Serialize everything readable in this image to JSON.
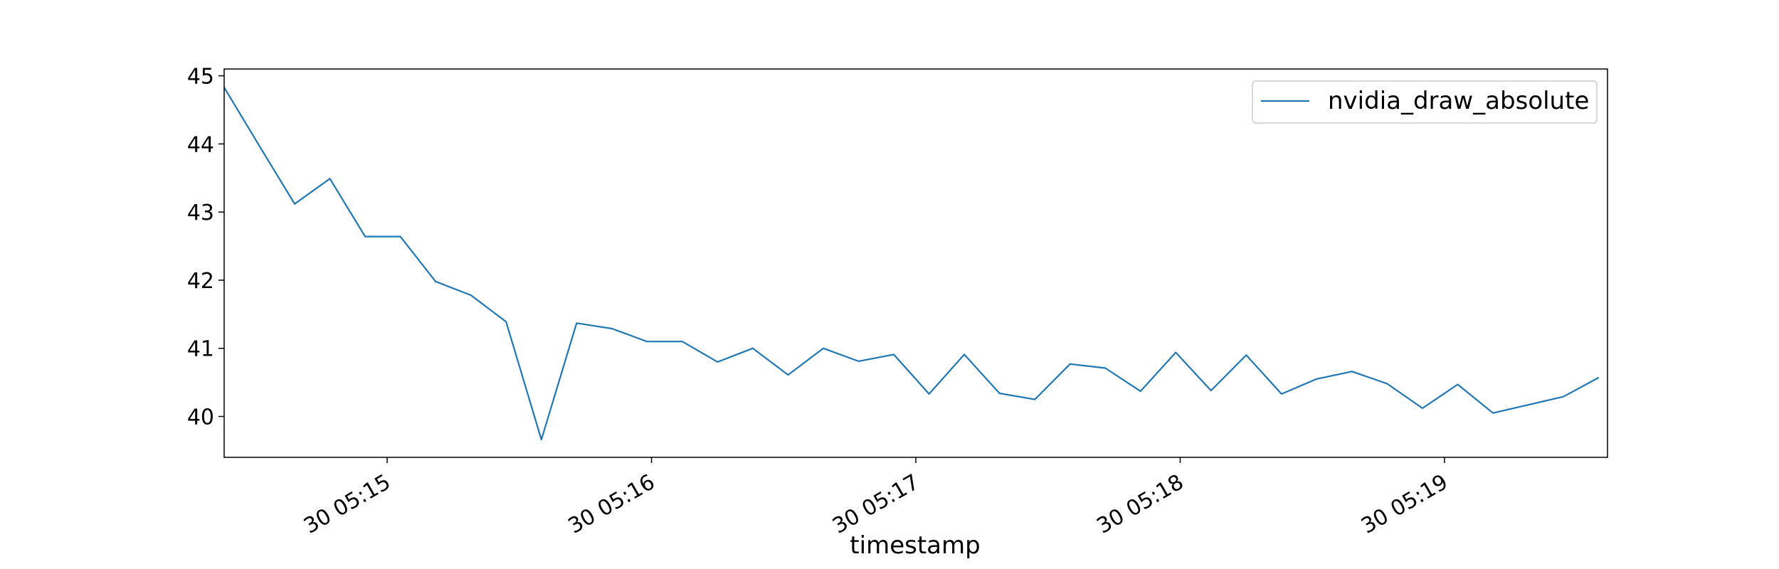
{
  "chart_data": {
    "type": "line",
    "title": "",
    "xlabel": "timestamp",
    "ylabel": "",
    "x_start": "2024-01-30T05:14:23",
    "x_step_seconds": 8,
    "xlim": [
      "2024-01-30T05:14:23",
      "2024-01-30T05:19:37"
    ],
    "ylim": [
      39.4,
      45.1
    ],
    "x_ticks": [
      {
        "label": "30 05:15",
        "value": "2024-01-30T05:15:00"
      },
      {
        "label": "30 05:16",
        "value": "2024-01-30T05:16:00"
      },
      {
        "label": "30 05:17",
        "value": "2024-01-30T05:17:00"
      },
      {
        "label": "30 05:18",
        "value": "2024-01-30T05:18:00"
      },
      {
        "label": "30 05:19",
        "value": "2024-01-30T05:19:00"
      }
    ],
    "y_ticks": [
      40,
      41,
      42,
      43,
      44,
      45
    ],
    "grid": false,
    "legend": {
      "position": "top-right"
    },
    "series": [
      {
        "name": "nvidia_draw_absolute",
        "color": "#1f77b4",
        "values": [
          44.83,
          43.97,
          43.12,
          43.49,
          42.64,
          42.64,
          41.98,
          41.78,
          41.39,
          39.66,
          41.37,
          41.29,
          41.1,
          41.1,
          40.8,
          41.0,
          40.61,
          41.0,
          40.81,
          40.91,
          40.33,
          40.91,
          40.34,
          40.25,
          40.77,
          40.71,
          40.37,
          40.94,
          40.38,
          40.9,
          40.33,
          40.55,
          40.66,
          40.48,
          40.12,
          40.47,
          40.05,
          40.17,
          40.29,
          40.57
        ]
      }
    ]
  }
}
